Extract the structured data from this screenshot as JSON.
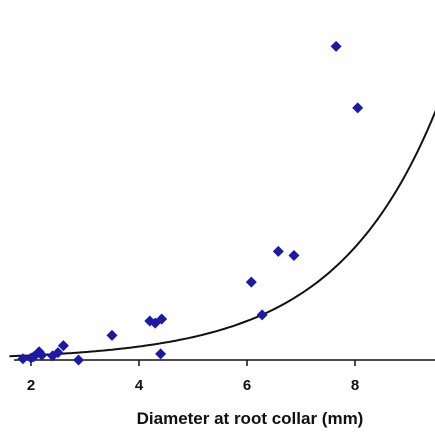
{
  "chart_data": {
    "type": "scatter",
    "title": "",
    "xlabel": "Diameter at root collar (mm)",
    "ylabel": "",
    "xlim": [
      1.6,
      9.5
    ],
    "ylim": [
      0,
      1
    ],
    "x_ticks": [
      "2",
      "4",
      "6",
      "8"
    ],
    "grid": false,
    "legend": "none",
    "colors": {
      "points": "#1a1aa6",
      "trend": "#111111",
      "axis": "#111111"
    },
    "series": [
      {
        "marker": "diamond",
        "points": [
          {
            "x": 1.85,
            "y": 0.003
          },
          {
            "x": 2.0,
            "y": 0.005
          },
          {
            "x": 2.05,
            "y": 0.008
          },
          {
            "x": 2.15,
            "y": 0.02
          },
          {
            "x": 2.2,
            "y": 0.012
          },
          {
            "x": 2.4,
            "y": 0.01
          },
          {
            "x": 2.5,
            "y": 0.018
          },
          {
            "x": 2.6,
            "y": 0.035
          },
          {
            "x": 2.88,
            "y": 0.0
          },
          {
            "x": 3.5,
            "y": 0.06
          },
          {
            "x": 4.2,
            "y": 0.095
          },
          {
            "x": 4.3,
            "y": 0.09
          },
          {
            "x": 4.42,
            "y": 0.1
          },
          {
            "x": 4.4,
            "y": 0.015
          },
          {
            "x": 6.08,
            "y": 0.19
          },
          {
            "x": 6.28,
            "y": 0.11
          },
          {
            "x": 6.58,
            "y": 0.265
          },
          {
            "x": 6.87,
            "y": 0.255
          },
          {
            "x": 7.65,
            "y": 0.765
          },
          {
            "x": 8.05,
            "y": 0.615
          }
        ]
      }
    ],
    "trendline": {
      "type": "exponential",
      "a": 0.00393,
      "b": 0.531
    }
  }
}
